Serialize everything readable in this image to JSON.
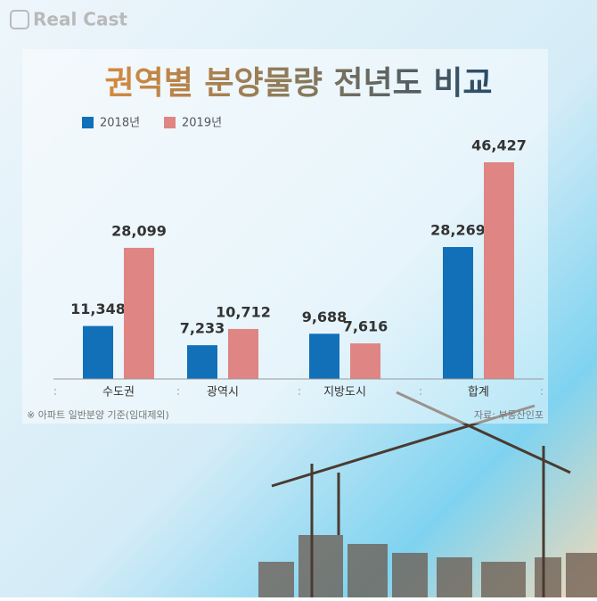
{
  "brand": "Real Cast",
  "chart_data": {
    "type": "bar",
    "title": "권역별 분양물량 전년도 비교",
    "categories": [
      "수도권",
      "광역시",
      "지방도시",
      "합계"
    ],
    "series": [
      {
        "name": "2018년",
        "color": "#1170b8",
        "values": [
          11348,
          7233,
          9688,
          28269
        ],
        "value_labels": [
          "11,348",
          "7,233",
          "9,688",
          "28,269"
        ]
      },
      {
        "name": "2019년",
        "color": "#df8583",
        "values": [
          28099,
          10712,
          7616,
          46427
        ],
        "value_labels": [
          "28,099",
          "10,712",
          "7,616",
          "46,427"
        ]
      }
    ],
    "note": "※ 아파트 일반분양 기준(임대제외)",
    "source": "자료: 부동산인포"
  }
}
